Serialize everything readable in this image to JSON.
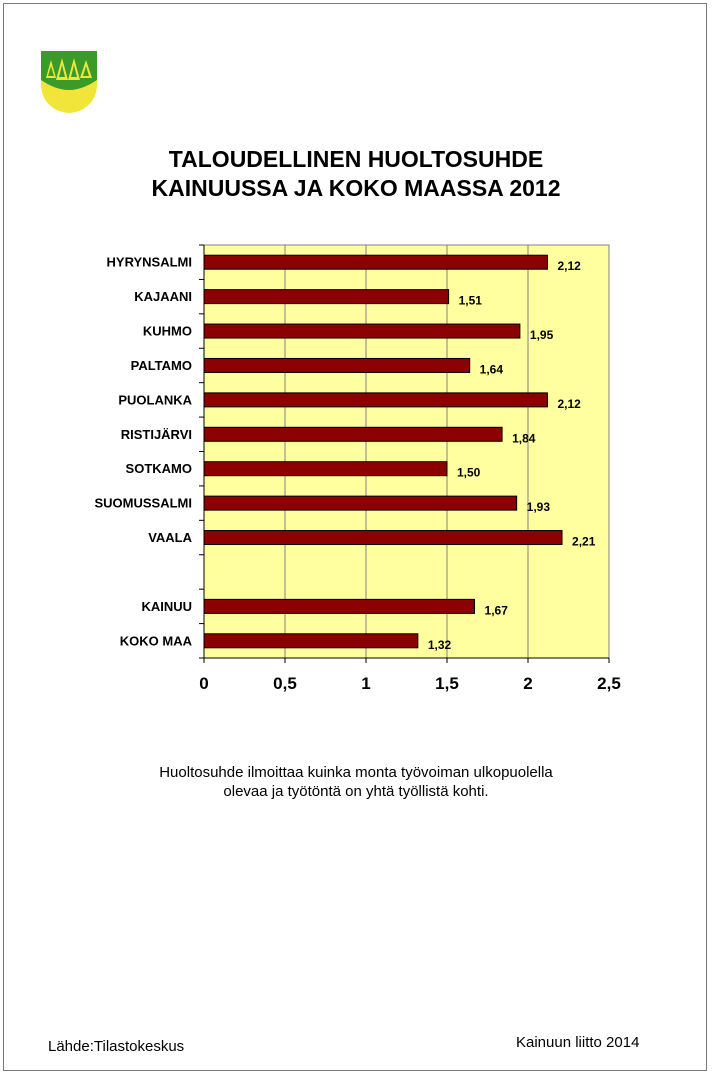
{
  "title_line1": "TALOUDELLINEN HUOLTOSUHDE",
  "title_line2": "KAINUUSSA JA KOKO MAASSA 2012",
  "note_line1": "Huoltosuhde ilmoittaa kuinka monta työvoiman ulkopuolella",
  "note_line2": "olevaa ja työtöntä on yhtä työllistä kohti.",
  "source": "Lähde:Tilastokeskus",
  "credit": "Kainuun liitto 2014",
  "logo_icon": "kainuu-coat-of-arms-icon",
  "colors": {
    "bar_fill": "#8b0000",
    "plot_background": "#ffffa0",
    "logo_green": "#3a9a2a",
    "logo_yellow": "#f2e53a"
  },
  "chart_data": {
    "type": "bar",
    "orientation": "horizontal",
    "categories": [
      "HYRYNSALMI",
      "KAJAANI",
      "KUHMO",
      "PALTAMO",
      "PUOLANKA",
      "RISTIJÄRVI",
      "SOTKAMO",
      "SUOMUSSALMI",
      "VAALA",
      "",
      "KAINUU",
      "KOKO MAA"
    ],
    "values": [
      2.12,
      1.51,
      1.95,
      1.64,
      2.12,
      1.84,
      1.5,
      1.93,
      2.21,
      null,
      1.67,
      1.32
    ],
    "value_labels": [
      "2,12",
      "1,51",
      "1,95",
      "1,64",
      "2,12",
      "1,84",
      "1,50",
      "1,93",
      "2,21",
      "",
      "1,67",
      "1,32"
    ],
    "x_ticks": [
      0,
      0.5,
      1,
      1.5,
      2,
      2.5
    ],
    "x_tick_labels": [
      "0",
      "0,5",
      "1",
      "1,5",
      "2",
      "2,5"
    ],
    "xlim": [
      0,
      2.5
    ],
    "grid": true,
    "legend": "none"
  }
}
